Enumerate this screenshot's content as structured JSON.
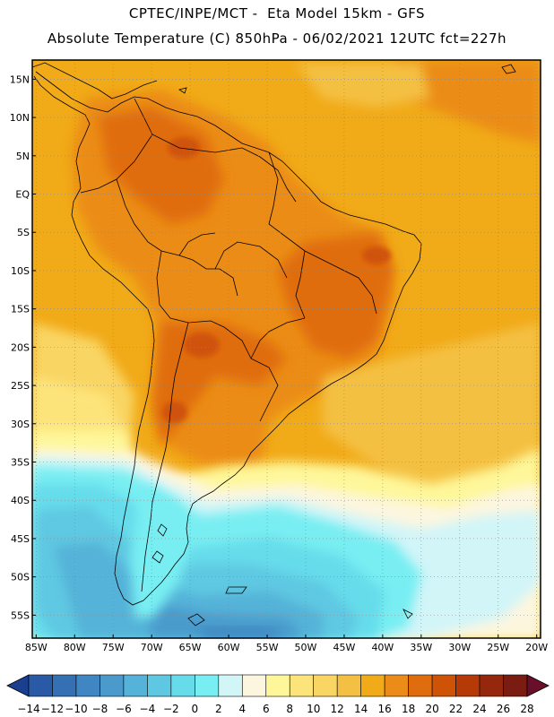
{
  "header": {
    "line1": "CPTEC/INPE/MCT -  Eta Model 15km - GFS",
    "line2": "Absolute Temperature (C) 850hPa - 06/02/2021 12UTC fct=227h"
  },
  "map": {
    "lon_range": [
      -85.5,
      -19.5
    ],
    "lat_range": [
      17.5,
      -58.0
    ],
    "lat_ticks": [
      {
        "value": 15,
        "label": "15N"
      },
      {
        "value": 10,
        "label": "10N"
      },
      {
        "value": 5,
        "label": "5N"
      },
      {
        "value": 0,
        "label": "EQ"
      },
      {
        "value": -5,
        "label": "5S"
      },
      {
        "value": -10,
        "label": "10S"
      },
      {
        "value": -15,
        "label": "15S"
      },
      {
        "value": -20,
        "label": "20S"
      },
      {
        "value": -25,
        "label": "25S"
      },
      {
        "value": -30,
        "label": "30S"
      },
      {
        "value": -35,
        "label": "35S"
      },
      {
        "value": -40,
        "label": "40S"
      },
      {
        "value": -45,
        "label": "45S"
      },
      {
        "value": -50,
        "label": "50S"
      },
      {
        "value": -55,
        "label": "55S"
      }
    ],
    "lon_ticks": [
      {
        "value": -85,
        "label": "85W"
      },
      {
        "value": -80,
        "label": "80W"
      },
      {
        "value": -75,
        "label": "75W"
      },
      {
        "value": -70,
        "label": "70W"
      },
      {
        "value": -65,
        "label": "65W"
      },
      {
        "value": -60,
        "label": "60W"
      },
      {
        "value": -55,
        "label": "55W"
      },
      {
        "value": -50,
        "label": "50W"
      },
      {
        "value": -45,
        "label": "45W"
      },
      {
        "value": -40,
        "label": "40W"
      },
      {
        "value": -35,
        "label": "35W"
      },
      {
        "value": -30,
        "label": "30W"
      },
      {
        "value": -25,
        "label": "25W"
      },
      {
        "value": -20,
        "label": "20W"
      }
    ],
    "gridlines": true
  },
  "colorbar": {
    "labels": [
      "-14",
      "-12",
      "-10",
      "-8",
      "-6",
      "-4",
      "-2",
      "0",
      "2",
      "4",
      "6",
      "8",
      "10",
      "12",
      "14",
      "16",
      "18",
      "20",
      "22",
      "24",
      "26",
      "28"
    ],
    "colors": [
      "#1a3f8f",
      "#2a5aa6",
      "#3670b4",
      "#3f86c2",
      "#4a9bcc",
      "#55b2d8",
      "#5ec8e2",
      "#66dceb",
      "#78eef2",
      "#d2f5f8",
      "#fdf6df",
      "#fef79a",
      "#fde47a",
      "#f9d563",
      "#f4c043",
      "#f1aa18",
      "#eb8c18",
      "#e06d0d",
      "#cf5307",
      "#b53a08",
      "#95270c",
      "#7a1c12",
      "#6a0f2a"
    ]
  }
}
